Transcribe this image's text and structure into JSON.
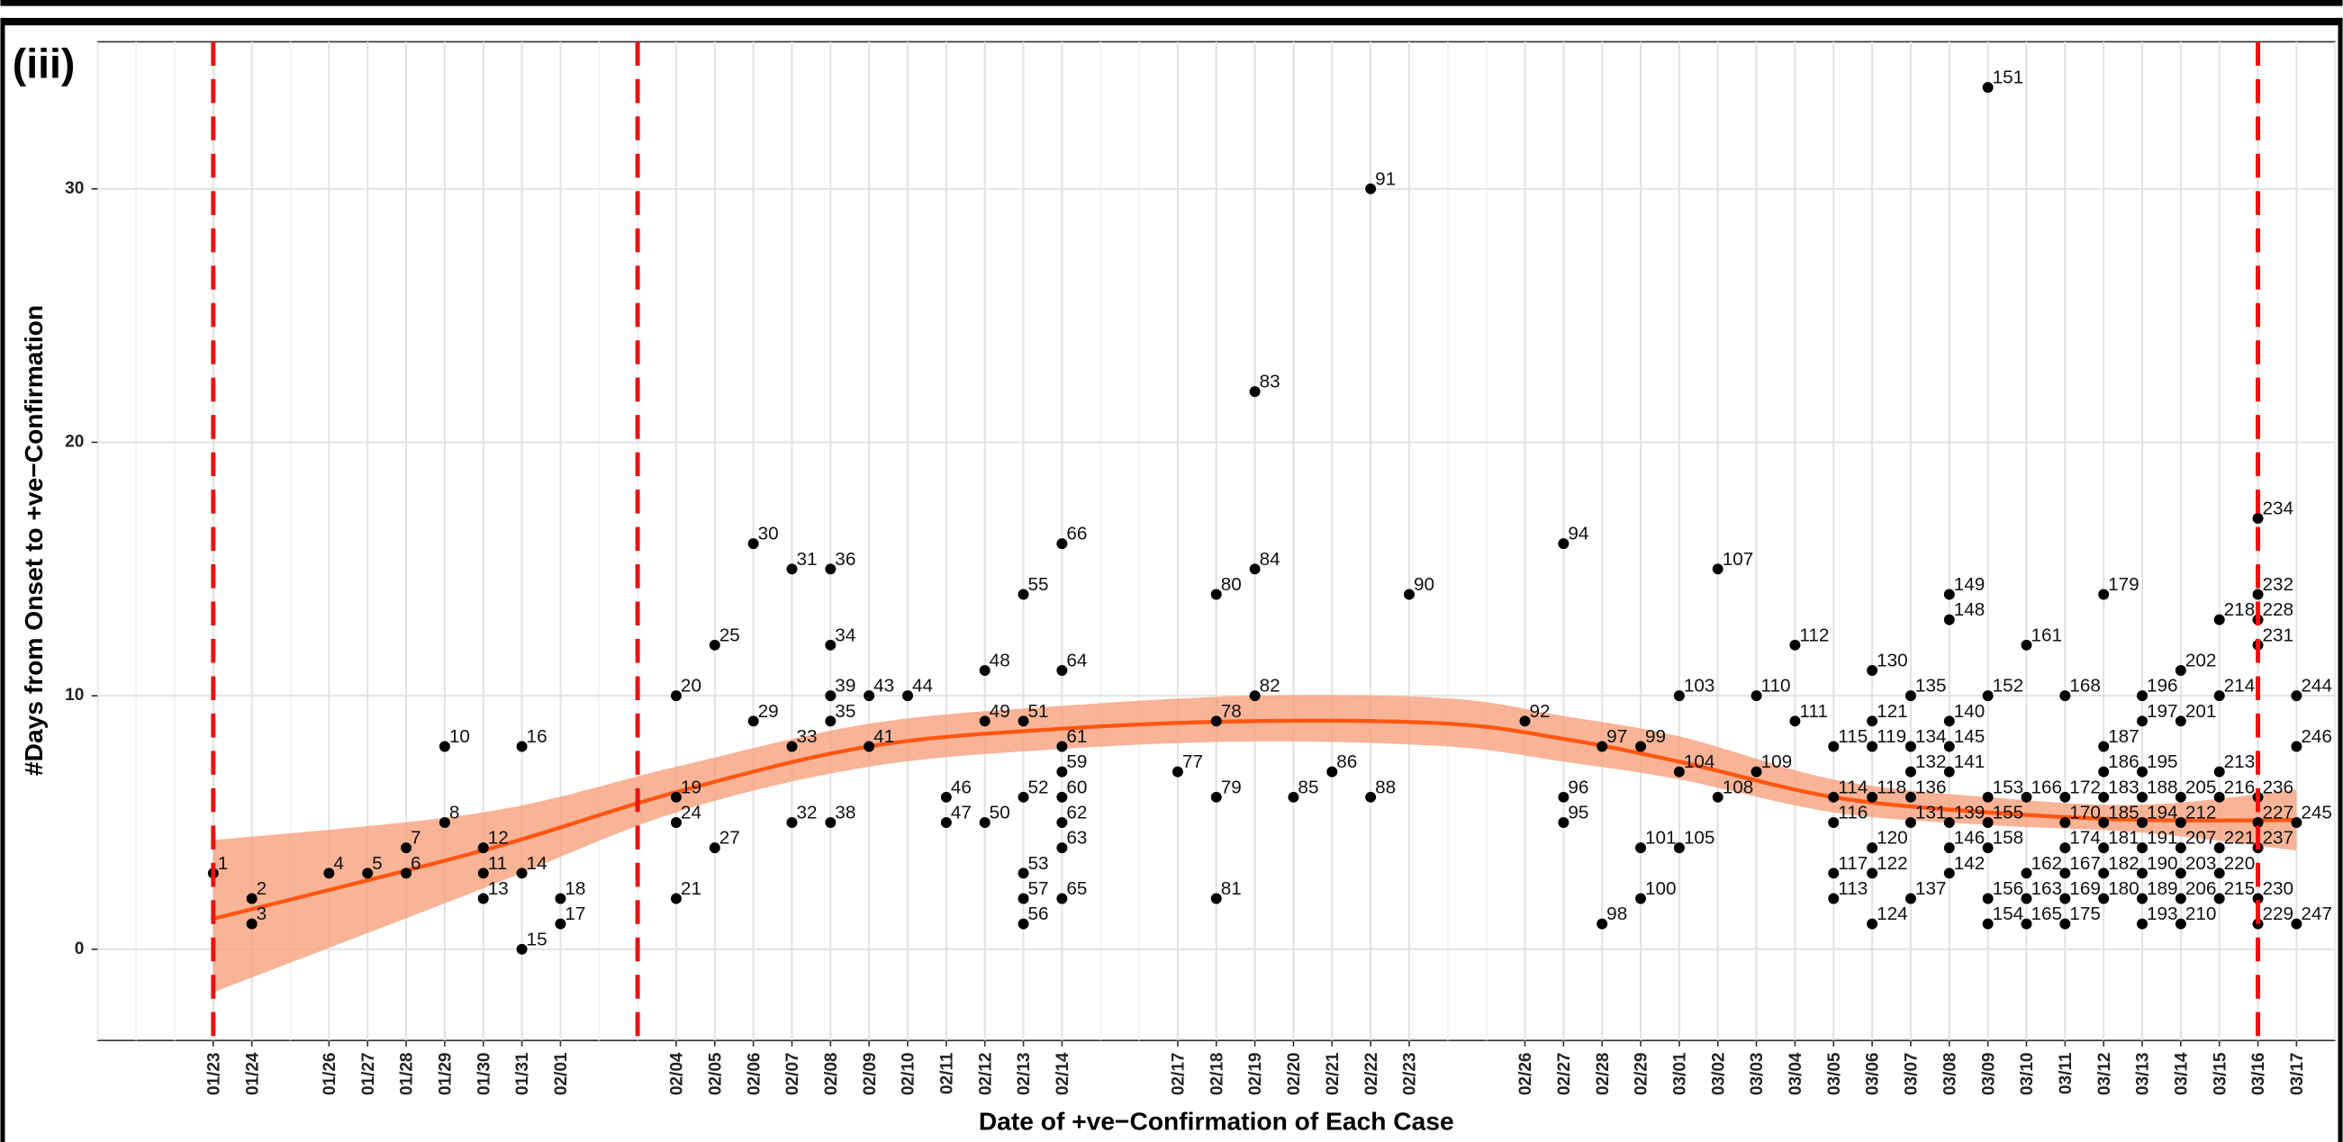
{
  "chart_data": {
    "type": "scatter",
    "panel_label": "(iii)",
    "x_label": "Date of +ve−Confirmation of Each Case",
    "y_label": "#Days from Onset to +ve−Confirmation",
    "xlim": [
      "01/20",
      "03/18"
    ],
    "ylim": [
      -3.6,
      35.8
    ],
    "yticks": [
      0,
      10,
      20,
      30
    ],
    "xticks": [
      "01/23",
      "01/24",
      "01/26",
      "01/27",
      "01/28",
      "01/29",
      "01/30",
      "01/31",
      "02/01",
      "02/04",
      "02/05",
      "02/06",
      "02/07",
      "02/08",
      "02/09",
      "02/10",
      "02/11",
      "02/12",
      "02/13",
      "02/14",
      "02/17",
      "02/18",
      "02/19",
      "02/20",
      "02/21",
      "02/22",
      "02/23",
      "02/26",
      "02/27",
      "02/28",
      "02/29",
      "03/01",
      "03/02",
      "03/03",
      "03/04",
      "03/05",
      "03/06",
      "03/07",
      "03/08",
      "03/09",
      "03/10",
      "03/11",
      "03/12",
      "03/13",
      "03/14",
      "03/15",
      "03/16",
      "03/17"
    ],
    "grid": true,
    "vlines": [
      "01/23",
      "02/03",
      "03/16"
    ],
    "vline_color": "#ee1111",
    "color": "#000000",
    "x": [
      "01/23",
      "01/24",
      "01/24",
      "01/26",
      "01/27",
      "01/28",
      "01/28",
      "01/29",
      "01/29",
      "01/30",
      "01/30",
      "01/30",
      "01/31",
      "01/31",
      "01/31",
      "02/01",
      "02/01",
      "02/04",
      "02/04",
      "02/04",
      "02/04",
      "02/05",
      "02/05",
      "02/06",
      "02/06",
      "02/07",
      "02/07",
      "02/07",
      "02/08",
      "02/08",
      "02/08",
      "02/08",
      "02/08",
      "02/09",
      "02/09",
      "02/10",
      "02/11",
      "02/11",
      "02/12",
      "02/12",
      "02/12",
      "02/13",
      "02/13",
      "02/13",
      "02/13",
      "02/13",
      "02/13",
      "02/14",
      "02/14",
      "02/14",
      "02/14",
      "02/14",
      "02/14",
      "02/14",
      "02/14",
      "02/17",
      "02/18",
      "02/18",
      "02/18",
      "02/18",
      "02/19",
      "02/19",
      "02/19",
      "02/20",
      "02/21",
      "02/22",
      "02/22",
      "02/23",
      "02/26",
      "02/27",
      "02/27",
      "02/27",
      "02/28",
      "02/28",
      "02/29",
      "02/29",
      "02/29",
      "03/01",
      "03/01",
      "03/01",
      "03/02",
      "03/02",
      "03/03",
      "03/03",
      "03/04",
      "03/04",
      "03/05",
      "03/05",
      "03/05",
      "03/05",
      "03/05",
      "03/06",
      "03/06",
      "03/06",
      "03/06",
      "03/06",
      "03/06",
      "03/06",
      "03/07",
      "03/07",
      "03/07",
      "03/07",
      "03/07",
      "03/07",
      "03/08",
      "03/08",
      "03/08",
      "03/08",
      "03/08",
      "03/08",
      "03/08",
      "03/08",
      "03/09",
      "03/09",
      "03/09",
      "03/09",
      "03/09",
      "03/09",
      "03/09",
      "03/10",
      "03/10",
      "03/10",
      "03/10",
      "03/10",
      "03/11",
      "03/11",
      "03/11",
      "03/11",
      "03/11",
      "03/11",
      "03/11",
      "03/12",
      "03/12",
      "03/12",
      "03/12",
      "03/12",
      "03/12",
      "03/12",
      "03/12",
      "03/13",
      "03/13",
      "03/13",
      "03/13",
      "03/13",
      "03/13",
      "03/13",
      "03/13",
      "03/13",
      "03/14",
      "03/14",
      "03/14",
      "03/14",
      "03/14",
      "03/14",
      "03/14",
      "03/14",
      "03/15",
      "03/15",
      "03/15",
      "03/15",
      "03/15",
      "03/15",
      "03/15",
      "03/16",
      "03/16",
      "03/16",
      "03/16",
      "03/16",
      "03/16",
      "03/16",
      "03/16",
      "03/16",
      "03/17",
      "03/17",
      "03/17",
      "03/17"
    ],
    "values": [
      3,
      2,
      1,
      3,
      3,
      4,
      3,
      8,
      5,
      4,
      3,
      2,
      8,
      3,
      0,
      2,
      1,
      10,
      6,
      5,
      2,
      12,
      4,
      16,
      9,
      15,
      8,
      5,
      15,
      12,
      10,
      9,
      5,
      10,
      8,
      10,
      6,
      5,
      11,
      9,
      5,
      14,
      9,
      6,
      3,
      2,
      1,
      16,
      11,
      8,
      7,
      6,
      5,
      4,
      2,
      7,
      14,
      9,
      6,
      2,
      22,
      15,
      10,
      6,
      7,
      30,
      6,
      14,
      9,
      16,
      6,
      5,
      8,
      1,
      8,
      4,
      2,
      10,
      7,
      4,
      15,
      6,
      10,
      7,
      12,
      9,
      8,
      6,
      5,
      3,
      2,
      11,
      9,
      8,
      6,
      4,
      3,
      1,
      10,
      8,
      7,
      6,
      5,
      2,
      14,
      13,
      9,
      8,
      7,
      5,
      4,
      3,
      34,
      10,
      6,
      5,
      4,
      2,
      1,
      12,
      6,
      3,
      2,
      1,
      10,
      6,
      5,
      4,
      3,
      2,
      1,
      14,
      8,
      7,
      6,
      5,
      4,
      3,
      2,
      10,
      9,
      7,
      6,
      5,
      4,
      3,
      2,
      1,
      11,
      9,
      6,
      5,
      4,
      3,
      2,
      1,
      13,
      10,
      7,
      6,
      4,
      3,
      2,
      17,
      14,
      13,
      12,
      6,
      5,
      4,
      2,
      1,
      10,
      8,
      5,
      1
    ],
    "labels": [
      1,
      2,
      3,
      4,
      5,
      7,
      6,
      10,
      8,
      12,
      11,
      13,
      16,
      14,
      15,
      18,
      17,
      20,
      19,
      24,
      21,
      25,
      27,
      30,
      29,
      31,
      33,
      32,
      36,
      34,
      39,
      35,
      38,
      43,
      41,
      44,
      46,
      47,
      48,
      49,
      50,
      55,
      51,
      52,
      53,
      57,
      56,
      66,
      64,
      61,
      59,
      60,
      62,
      63,
      65,
      77,
      80,
      78,
      79,
      81,
      83,
      84,
      82,
      85,
      86,
      91,
      88,
      90,
      92,
      94,
      96,
      95,
      97,
      98,
      99,
      101,
      100,
      103,
      104,
      105,
      107,
      108,
      110,
      109,
      112,
      111,
      115,
      114,
      116,
      117,
      113,
      130,
      121,
      119,
      118,
      120,
      122,
      124,
      135,
      134,
      132,
      136,
      131,
      137,
      149,
      148,
      140,
      145,
      141,
      139,
      146,
      142,
      151,
      152,
      153,
      155,
      158,
      156,
      154,
      161,
      166,
      162,
      163,
      165,
      168,
      172,
      170,
      174,
      167,
      169,
      175,
      179,
      187,
      186,
      183,
      185,
      181,
      182,
      180,
      196,
      197,
      195,
      188,
      194,
      191,
      190,
      189,
      193,
      202,
      201,
      205,
      212,
      207,
      203,
      206,
      210,
      218,
      214,
      213,
      216,
      221,
      220,
      215,
      234,
      232,
      228,
      231,
      236,
      227,
      237,
      230,
      229,
      244,
      246,
      245,
      247
    ],
    "fit": {
      "color": "#ff5511",
      "band_color": "#f7a07c",
      "x": [
        "01/23",
        "01/30",
        "02/04",
        "02/09",
        "02/14",
        "02/19",
        "02/24",
        "02/27",
        "03/01",
        "03/05",
        "03/09",
        "03/13",
        "03/17"
      ],
      "values": [
        1.2,
        3.9,
        6.2,
        8.0,
        8.7,
        9.0,
        8.9,
        8.3,
        7.4,
        6.0,
        5.4,
        5.1,
        5.1
      ],
      "lower": [
        -1.7,
        2.4,
        5.4,
        7.2,
        7.9,
        8.2,
        8.0,
        7.4,
        6.7,
        5.4,
        4.9,
        4.6,
        3.9
      ],
      "upper": [
        4.3,
        5.4,
        7.2,
        8.9,
        9.6,
        10.0,
        9.9,
        9.2,
        8.4,
        6.7,
        6.0,
        5.7,
        6.3
      ]
    }
  }
}
